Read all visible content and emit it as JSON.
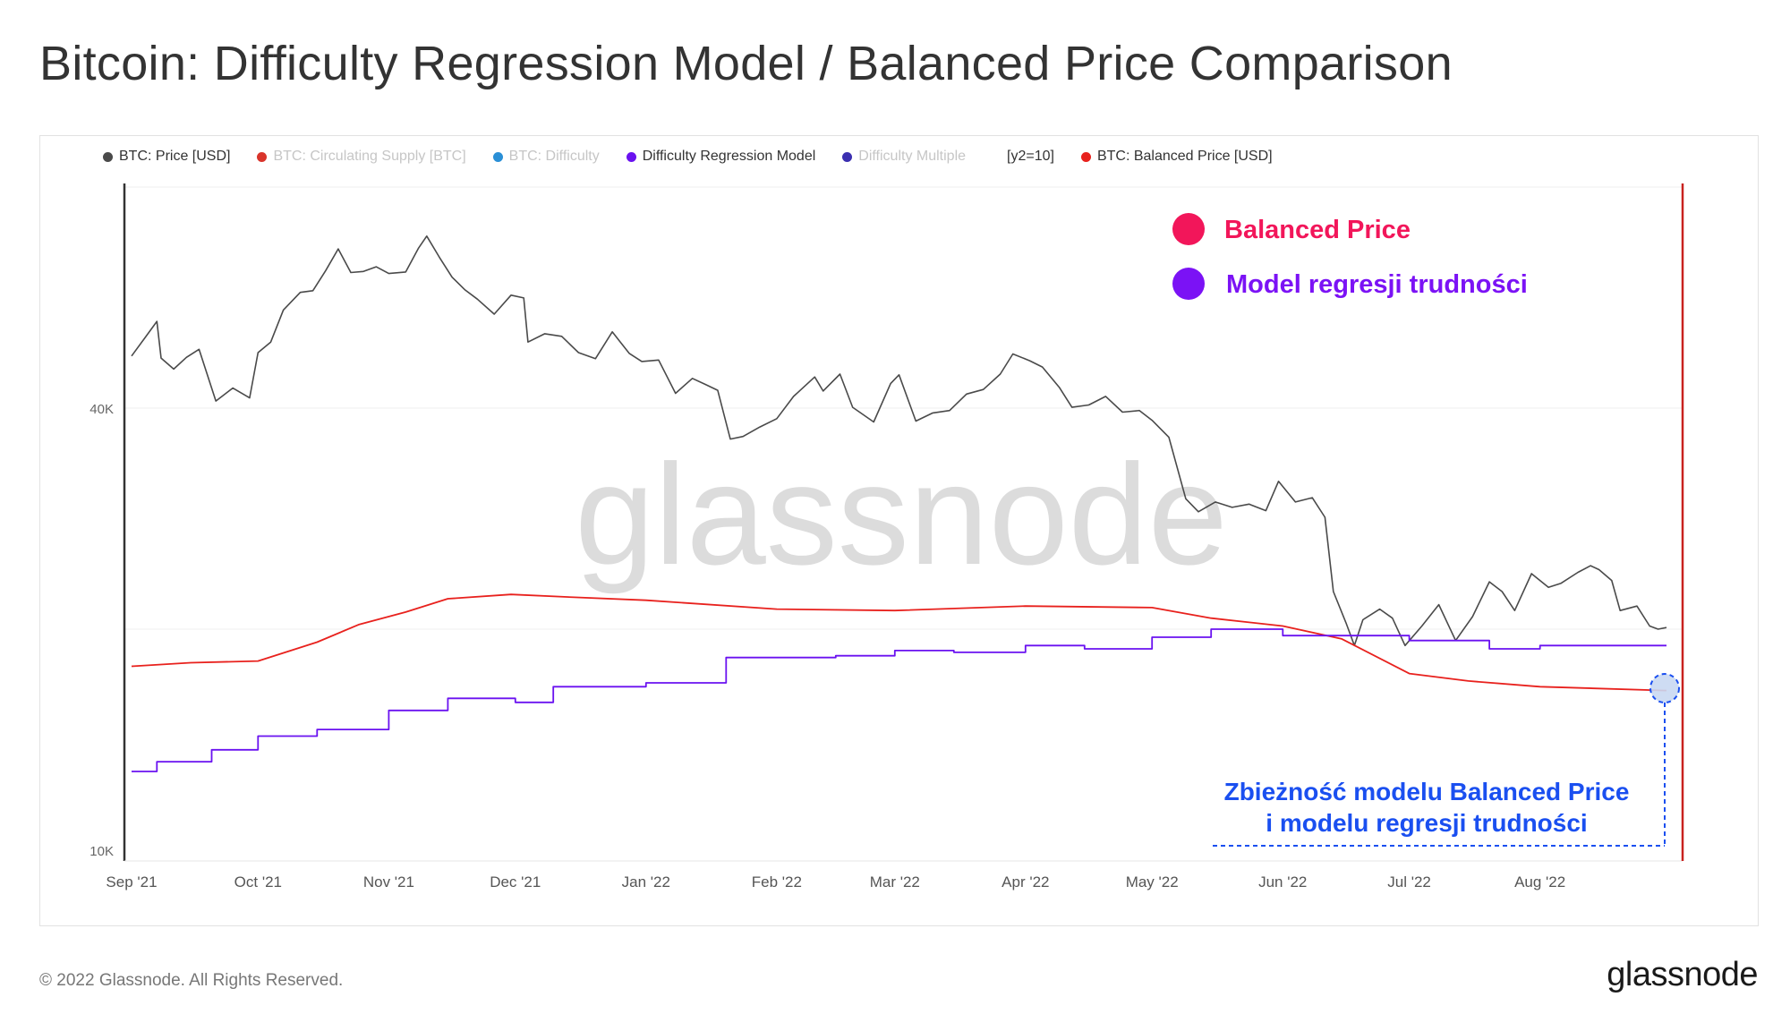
{
  "title": "Bitcoin: Difficulty Regression Model / Balanced Price Comparison",
  "legend": [
    {
      "label": "BTC: Price [USD]",
      "color": "#4a4a4a",
      "dim": false
    },
    {
      "label": "BTC: Circulating Supply [BTC]",
      "color": "#d9342b",
      "dim": true
    },
    {
      "label": "BTC: Difficulty",
      "color": "#2a8fd6",
      "dim": true
    },
    {
      "label": "Difficulty Regression Model",
      "color": "#6a12f0",
      "dim": false
    },
    {
      "label": "Difficulty Multiple",
      "color": "#3b2fb0",
      "dim": true
    }
  ],
  "legend_y2": "[y2=10]",
  "legend_last": {
    "label": "BTC: Balanced Price [USD]",
    "color": "#e8211d"
  },
  "watermark": "glassnode",
  "annotations": {
    "balanced_label": "Balanced Price",
    "balanced_color": "#f2165a",
    "model_label": "Model regresji trudności",
    "model_color": "#7b12f5",
    "convergence_line1": "Zbieżność modelu Balanced Price",
    "convergence_line2": "i modelu regresji trudności",
    "convergence_color": "#1a4ff0"
  },
  "footer": {
    "copyright": "© 2022 Glassnode. All Rights Reserved.",
    "logo": "glassnode"
  },
  "chart_data": {
    "type": "line",
    "title": "Bitcoin: Difficulty Regression Model / Balanced Price Comparison",
    "yscale": "log",
    "ylim": [
      10000,
      80000
    ],
    "yticks": [
      {
        "value": 10000,
        "label": "10K"
      },
      {
        "value": 40000,
        "label": "40K"
      }
    ],
    "xlim": [
      "2021-09-01",
      "2022-08-31"
    ],
    "xticks": [
      {
        "date": "2021-09-01",
        "label": "Sep '21"
      },
      {
        "date": "2021-10-01",
        "label": "Oct '21"
      },
      {
        "date": "2021-11-01",
        "label": "Nov '21"
      },
      {
        "date": "2021-12-01",
        "label": "Dec '21"
      },
      {
        "date": "2022-01-01",
        "label": "Jan '22"
      },
      {
        "date": "2022-02-01",
        "label": "Feb '22"
      },
      {
        "date": "2022-03-01",
        "label": "Mar '22"
      },
      {
        "date": "2022-04-01",
        "label": "Apr '22"
      },
      {
        "date": "2022-05-01",
        "label": "May '22"
      },
      {
        "date": "2022-06-01",
        "label": "Jun '22"
      },
      {
        "date": "2022-07-01",
        "label": "Jul '22"
      },
      {
        "date": "2022-08-01",
        "label": "Aug '22"
      }
    ],
    "series": [
      {
        "name": "BTC: Price [USD]",
        "color": "#4a4a4a",
        "points": [
          [
            "2021-09-01",
            47100
          ],
          [
            "2021-09-04",
            49700
          ],
          [
            "2021-09-07",
            52500
          ],
          [
            "2021-09-08",
            46800
          ],
          [
            "2021-09-11",
            45200
          ],
          [
            "2021-09-14",
            46900
          ],
          [
            "2021-09-17",
            48100
          ],
          [
            "2021-09-21",
            40900
          ],
          [
            "2021-09-25",
            42600
          ],
          [
            "2021-09-29",
            41300
          ],
          [
            "2021-10-01",
            47600
          ],
          [
            "2021-10-04",
            49200
          ],
          [
            "2021-10-07",
            54400
          ],
          [
            "2021-10-11",
            57500
          ],
          [
            "2021-10-14",
            57800
          ],
          [
            "2021-10-17",
            61500
          ],
          [
            "2021-10-20",
            65900
          ],
          [
            "2021-10-23",
            61200
          ],
          [
            "2021-10-26",
            61400
          ],
          [
            "2021-10-29",
            62300
          ],
          [
            "2021-11-01",
            61000
          ],
          [
            "2021-11-05",
            61300
          ],
          [
            "2021-11-08",
            66000
          ],
          [
            "2021-11-10",
            68600
          ],
          [
            "2021-11-13",
            64200
          ],
          [
            "2021-11-16",
            60300
          ],
          [
            "2021-11-19",
            58000
          ],
          [
            "2021-11-22",
            56300
          ],
          [
            "2021-11-26",
            53700
          ],
          [
            "2021-11-30",
            57000
          ],
          [
            "2021-12-03",
            56500
          ],
          [
            "2021-12-04",
            49200
          ],
          [
            "2021-12-08",
            50500
          ],
          [
            "2021-12-12",
            50100
          ],
          [
            "2021-12-16",
            47600
          ],
          [
            "2021-12-20",
            46700
          ],
          [
            "2021-12-24",
            50800
          ],
          [
            "2021-12-28",
            47500
          ],
          [
            "2021-12-31",
            46300
          ],
          [
            "2022-01-04",
            46500
          ],
          [
            "2022-01-08",
            41900
          ],
          [
            "2022-01-12",
            43900
          ],
          [
            "2022-01-15",
            43100
          ],
          [
            "2022-01-18",
            42300
          ],
          [
            "2022-01-21",
            36300
          ],
          [
            "2022-01-24",
            36600
          ],
          [
            "2022-01-28",
            37700
          ],
          [
            "2022-02-01",
            38700
          ],
          [
            "2022-02-05",
            41500
          ],
          [
            "2022-02-10",
            44100
          ],
          [
            "2022-02-12",
            42200
          ],
          [
            "2022-02-16",
            44500
          ],
          [
            "2022-02-19",
            40100
          ],
          [
            "2022-02-24",
            38300
          ],
          [
            "2022-02-28",
            43200
          ],
          [
            "2022-03-02",
            44400
          ],
          [
            "2022-03-06",
            38400
          ],
          [
            "2022-03-10",
            39400
          ],
          [
            "2022-03-14",
            39700
          ],
          [
            "2022-03-18",
            41800
          ],
          [
            "2022-03-22",
            42400
          ],
          [
            "2022-03-26",
            44500
          ],
          [
            "2022-03-29",
            47400
          ],
          [
            "2022-04-02",
            46400
          ],
          [
            "2022-04-05",
            45500
          ],
          [
            "2022-04-09",
            42700
          ],
          [
            "2022-04-12",
            40100
          ],
          [
            "2022-04-16",
            40400
          ],
          [
            "2022-04-20",
            41500
          ],
          [
            "2022-04-24",
            39500
          ],
          [
            "2022-04-28",
            39700
          ],
          [
            "2022-05-01",
            38500
          ],
          [
            "2022-05-05",
            36500
          ],
          [
            "2022-05-09",
            30100
          ],
          [
            "2022-05-12",
            28900
          ],
          [
            "2022-05-16",
            29800
          ],
          [
            "2022-05-20",
            29300
          ],
          [
            "2022-05-24",
            29600
          ],
          [
            "2022-05-28",
            29000
          ],
          [
            "2022-05-31",
            31800
          ],
          [
            "2022-06-04",
            29800
          ],
          [
            "2022-06-08",
            30200
          ],
          [
            "2022-06-11",
            28400
          ],
          [
            "2022-06-13",
            22500
          ],
          [
            "2022-06-16",
            20400
          ],
          [
            "2022-06-18",
            19000
          ],
          [
            "2022-06-20",
            20600
          ],
          [
            "2022-06-24",
            21300
          ],
          [
            "2022-06-27",
            20700
          ],
          [
            "2022-06-30",
            19000
          ],
          [
            "2022-07-04",
            20200
          ],
          [
            "2022-07-08",
            21600
          ],
          [
            "2022-07-12",
            19300
          ],
          [
            "2022-07-16",
            20800
          ],
          [
            "2022-07-20",
            23200
          ],
          [
            "2022-07-23",
            22500
          ],
          [
            "2022-07-26",
            21200
          ],
          [
            "2022-07-30",
            23800
          ],
          [
            "2022-08-03",
            22800
          ],
          [
            "2022-08-06",
            23100
          ],
          [
            "2022-08-10",
            23900
          ],
          [
            "2022-08-13",
            24400
          ],
          [
            "2022-08-15",
            24100
          ],
          [
            "2022-08-18",
            23300
          ],
          [
            "2022-08-20",
            21200
          ],
          [
            "2022-08-24",
            21500
          ],
          [
            "2022-08-27",
            20200
          ],
          [
            "2022-08-29",
            20000
          ],
          [
            "2022-08-31",
            20100
          ]
        ]
      },
      {
        "name": "BTC: Balanced Price [USD]",
        "color": "#e8211d",
        "points": [
          [
            "2021-09-01",
            17800
          ],
          [
            "2021-09-15",
            18000
          ],
          [
            "2021-10-01",
            18100
          ],
          [
            "2021-10-15",
            19200
          ],
          [
            "2021-10-25",
            20300
          ],
          [
            "2021-11-05",
            21100
          ],
          [
            "2021-11-15",
            22000
          ],
          [
            "2021-11-30",
            22300
          ],
          [
            "2021-12-15",
            22100
          ],
          [
            "2022-01-01",
            21900
          ],
          [
            "2022-02-01",
            21300
          ],
          [
            "2022-03-01",
            21200
          ],
          [
            "2022-04-01",
            21500
          ],
          [
            "2022-05-01",
            21400
          ],
          [
            "2022-05-15",
            20700
          ],
          [
            "2022-06-01",
            20200
          ],
          [
            "2022-06-15",
            19400
          ],
          [
            "2022-07-01",
            17400
          ],
          [
            "2022-07-15",
            17000
          ],
          [
            "2022-08-01",
            16700
          ],
          [
            "2022-08-31",
            16500
          ]
        ]
      },
      {
        "name": "Difficulty Regression Model",
        "color": "#6a12f0",
        "points": [
          [
            "2021-09-01",
            12800
          ],
          [
            "2021-09-07",
            13200
          ],
          [
            "2021-09-20",
            13700
          ],
          [
            "2021-10-01",
            14300
          ],
          [
            "2021-10-15",
            14600
          ],
          [
            "2021-11-01",
            15500
          ],
          [
            "2021-11-15",
            16100
          ],
          [
            "2021-12-01",
            15900
          ],
          [
            "2021-12-10",
            16700
          ],
          [
            "2022-01-01",
            16900
          ],
          [
            "2022-01-20",
            18300
          ],
          [
            "2022-02-15",
            18400
          ],
          [
            "2022-03-01",
            18700
          ],
          [
            "2022-03-15",
            18600
          ],
          [
            "2022-04-01",
            19000
          ],
          [
            "2022-04-15",
            18800
          ],
          [
            "2022-05-01",
            19500
          ],
          [
            "2022-05-15",
            20000
          ],
          [
            "2022-06-01",
            19600
          ],
          [
            "2022-06-15",
            19600
          ],
          [
            "2022-07-01",
            19300
          ],
          [
            "2022-07-20",
            18800
          ],
          [
            "2022-08-01",
            19000
          ],
          [
            "2022-08-31",
            19000
          ]
        ]
      }
    ],
    "legend_position": "top-left",
    "grid": true
  }
}
